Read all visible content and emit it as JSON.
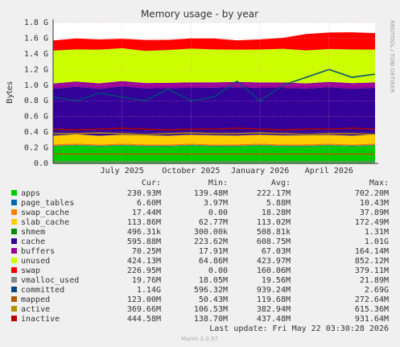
{
  "chart_data": {
    "type": "area",
    "title": "Memory usage - by year",
    "y_label": "Bytes",
    "side_label": "RRDTOOL / TOBI OETIKER",
    "x": [
      "2025-04",
      "2025-05",
      "2025-06",
      "2025-07",
      "2025-08",
      "2025-09",
      "2025-10",
      "2025-11",
      "2025-12",
      "2026-01",
      "2026-02",
      "2026-03",
      "2026-04",
      "2026-05",
      "2026-06"
    ],
    "xlim": [
      "2025-04",
      "2026-06"
    ],
    "xticks": [
      {
        "value": "2025-07",
        "label": "July 2025"
      },
      {
        "value": "2025-10",
        "label": "October 2025"
      },
      {
        "value": "2026-01",
        "label": "January 2026"
      },
      {
        "value": "2026-04",
        "label": "April 2026"
      }
    ],
    "ylim": [
      0,
      1.8
    ],
    "yticks": [
      {
        "value": 0,
        "label": "0.0"
      },
      {
        "value": 0.2,
        "label": "0.2 G"
      },
      {
        "value": 0.4,
        "label": "0.4 G"
      },
      {
        "value": 0.6,
        "label": "0.6 G"
      },
      {
        "value": 0.8,
        "label": "0.8 G"
      },
      {
        "value": 1.0,
        "label": "1.0 G"
      },
      {
        "value": 1.2,
        "label": "1.2 G"
      },
      {
        "value": 1.4,
        "label": "1.4 G"
      },
      {
        "value": 1.6,
        "label": "1.6 G"
      },
      {
        "value": 1.8,
        "label": "1.8 G"
      }
    ],
    "grid": true,
    "table_header": [
      "Cur:",
      "Min:",
      "Avg:",
      "Max:"
    ],
    "series": [
      {
        "name": "apps",
        "color": "#00cc00",
        "style": "area",
        "values": [
          0.22,
          0.23,
          0.22,
          0.23,
          0.22,
          0.22,
          0.23,
          0.22,
          0.22,
          0.23,
          0.22,
          0.22,
          0.23,
          0.22,
          0.23
        ],
        "stats": [
          "230.93M",
          "139.48M",
          "222.17M",
          "702.20M"
        ]
      },
      {
        "name": "page_tables",
        "color": "#0066b3",
        "style": "area",
        "values": [
          0.006,
          0.006,
          0.006,
          0.006,
          0.006,
          0.006,
          0.006,
          0.006,
          0.006,
          0.006,
          0.006,
          0.006,
          0.006,
          0.006,
          0.006
        ],
        "stats": [
          "6.60M",
          "3.97M",
          "5.88M",
          "10.43M"
        ]
      },
      {
        "name": "swap_cache",
        "color": "#ff8000",
        "style": "area",
        "values": [
          0.018,
          0.02,
          0.017,
          0.018,
          0.019,
          0.018,
          0.017,
          0.018,
          0.02,
          0.018,
          0.017,
          0.019,
          0.018,
          0.017,
          0.018
        ],
        "stats": [
          "17.44M",
          "0.00",
          "18.28M",
          "37.89M"
        ]
      },
      {
        "name": "slab_cache",
        "color": "#ffcc00",
        "style": "area",
        "values": [
          0.11,
          0.115,
          0.11,
          0.112,
          0.114,
          0.11,
          0.113,
          0.115,
          0.11,
          0.112,
          0.114,
          0.113,
          0.11,
          0.112,
          0.114
        ],
        "stats": [
          "113.86M",
          "62.77M",
          "113.02M",
          "172.49M"
        ]
      },
      {
        "name": "shmem",
        "color": "#008f00",
        "style": "area",
        "values": [
          0.0005,
          0.0005,
          0.0005,
          0.0005,
          0.0005,
          0.0005,
          0.0005,
          0.0005,
          0.0005,
          0.0005,
          0.0005,
          0.0005,
          0.0005,
          0.0005,
          0.0005
        ],
        "stats": [
          "496.31k",
          "300.00k",
          "508.81k",
          "1.31M"
        ]
      },
      {
        "name": "cache",
        "color": "#330099",
        "style": "area",
        "values": [
          0.6,
          0.61,
          0.6,
          0.62,
          0.6,
          0.61,
          0.6,
          0.61,
          0.62,
          0.6,
          0.61,
          0.6,
          0.61,
          0.6,
          0.6
        ],
        "stats": [
          "595.88M",
          "223.62M",
          "608.75M",
          "1.01G"
        ]
      },
      {
        "name": "buffers",
        "color": "#990099",
        "style": "area",
        "values": [
          0.067,
          0.065,
          0.07,
          0.066,
          0.068,
          0.065,
          0.07,
          0.067,
          0.066,
          0.069,
          0.067,
          0.065,
          0.068,
          0.07,
          0.066
        ],
        "stats": [
          "70.25M",
          "17.91M",
          "67.03M",
          "164.14M"
        ]
      },
      {
        "name": "unused",
        "color": "#ccff00",
        "style": "area",
        "values": [
          0.42,
          0.41,
          0.43,
          0.42,
          0.41,
          0.42,
          0.43,
          0.42,
          0.41,
          0.42,
          0.43,
          0.42,
          0.42,
          0.43,
          0.42
        ],
        "stats": [
          "424.13M",
          "64.86M",
          "423.97M",
          "852.12M"
        ]
      },
      {
        "name": "swap",
        "color": "#ff0000",
        "style": "area",
        "values": [
          0.13,
          0.14,
          0.13,
          0.12,
          0.14,
          0.13,
          0.13,
          0.14,
          0.12,
          0.13,
          0.14,
          0.21,
          0.21,
          0.22,
          0.21
        ],
        "stats": [
          "226.95M",
          "0.00",
          "160.06M",
          "379.11M"
        ]
      },
      {
        "name": "vmalloc_used",
        "color": "#888888",
        "style": "line",
        "values": [
          0.02,
          0.02,
          0.02,
          0.02,
          0.02,
          0.02,
          0.02,
          0.02,
          0.02,
          0.02,
          0.02,
          0.02,
          0.02,
          0.02,
          0.02
        ],
        "stats": [
          "19.76M",
          "18.05M",
          "19.56M",
          "21.89M"
        ]
      },
      {
        "name": "committed",
        "color": "#00487d",
        "style": "line",
        "values": [
          0.85,
          0.8,
          0.9,
          0.85,
          0.8,
          0.95,
          0.8,
          0.85,
          1.05,
          0.8,
          1.0,
          1.1,
          1.2,
          1.1,
          1.14
        ],
        "stats": [
          "1.14G",
          "596.32M",
          "939.24M",
          "2.69G"
        ]
      },
      {
        "name": "mapped",
        "color": "#b35a00",
        "style": "line",
        "values": [
          0.12,
          0.12,
          0.12,
          0.12,
          0.12,
          0.12,
          0.12,
          0.12,
          0.12,
          0.12,
          0.12,
          0.12,
          0.12,
          0.12,
          0.12
        ],
        "stats": [
          "123.00M",
          "50.43M",
          "119.68M",
          "272.64M"
        ]
      },
      {
        "name": "active",
        "color": "#b38f00",
        "style": "line",
        "values": [
          0.38,
          0.38,
          0.39,
          0.38,
          0.37,
          0.38,
          0.39,
          0.38,
          0.38,
          0.39,
          0.38,
          0.37,
          0.38,
          0.38,
          0.37
        ],
        "stats": [
          "369.66M",
          "106.53M",
          "382.94M",
          "615.36M"
        ]
      },
      {
        "name": "inactive",
        "color": "#b30000",
        "style": "line",
        "values": [
          0.44,
          0.43,
          0.44,
          0.45,
          0.44,
          0.43,
          0.44,
          0.44,
          0.45,
          0.44,
          0.43,
          0.44,
          0.44,
          0.45,
          0.44
        ],
        "stats": [
          "444.58M",
          "138.70M",
          "437.48M",
          "931.64M"
        ]
      }
    ],
    "last_update": "Last update: Fri May 22 03:30:28 2026",
    "version": "Munin 2.0.57"
  }
}
